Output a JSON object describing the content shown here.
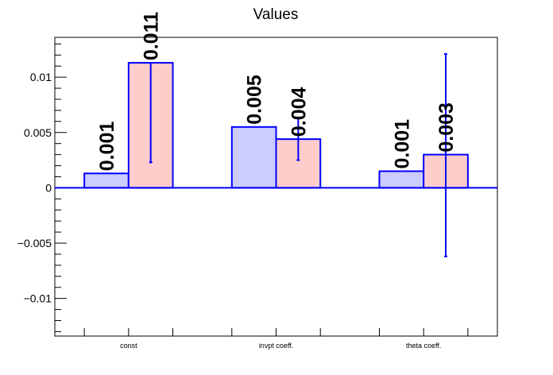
{
  "chart_data": {
    "type": "bar",
    "title": "Values",
    "categories": [
      "const",
      "invpt coeff.",
      "theta coeff."
    ],
    "series": [
      {
        "values": [
          0.0013,
          0.0055,
          0.0015
        ],
        "labels": [
          "0.001",
          "0.005",
          "0.001"
        ],
        "fill": "#ccccff",
        "stroke": "#0000ff",
        "errors": null
      },
      {
        "values": [
          0.0113,
          0.0044,
          0.003
        ],
        "labels": [
          "0.011",
          "0.004",
          "0.003"
        ],
        "fill": "#ffcccc",
        "stroke": "#0000ff",
        "errors": [
          [
            0.0023,
            0.0113
          ],
          [
            0.0025,
            0.0063
          ],
          [
            -0.0062,
            0.0121
          ]
        ]
      }
    ],
    "ylim": [
      -0.0134,
      0.0136
    ],
    "yticks": [
      {
        "value": 0.01,
        "label": "0.01"
      },
      {
        "value": 0.005,
        "label": "0.005"
      },
      {
        "value": 0,
        "label": "0"
      },
      {
        "value": -0.005,
        "label": "−0.005"
      },
      {
        "value": -0.01,
        "label": "−0.01"
      }
    ],
    "axis_color": "#000000",
    "grid": false,
    "legend": "none"
  }
}
